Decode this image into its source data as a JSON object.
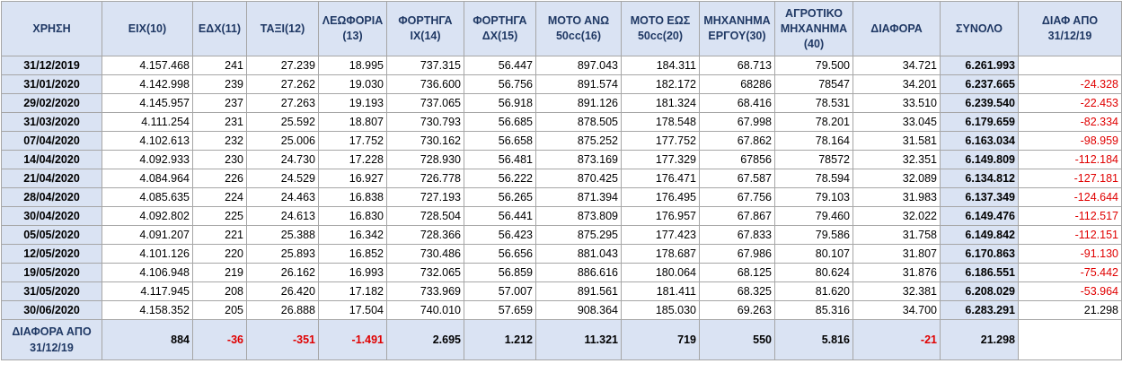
{
  "headers": [
    "ΧΡΗΣΗ",
    "ΕΙΧ(10)",
    "ΕΔΧ(11)",
    "ΤΑΞΙ(12)",
    "ΛΕΩΦΟΡΙΑ (13)",
    "ΦΟΡΤΗΓΑ ΙΧ(14)",
    "ΦΟΡΤΗΓΑ ΔΧ(15)",
    "ΜΟΤΟ ΑΝΩ 50cc(16)",
    "ΜΟΤΟ ΕΩΣ 50cc(20)",
    "ΜΗΧΑΝΗΜΑ ΕΡΓΟΥ(30)",
    "ΑΓΡΟΤΙΚΟ ΜΗΧΑΝΗΜΑ (40)",
    "ΔΙΑΦΟΡΑ",
    "ΣΥΝΟΛΟ",
    "ΔΙΑΦ ΑΠΟ 31/12/19"
  ],
  "rows": [
    [
      "31/12/2019",
      "4.157.468",
      "241",
      "27.239",
      "18.995",
      "737.315",
      "56.447",
      "897.043",
      "184.311",
      "68.713",
      "79.500",
      "34.721",
      "6.261.993",
      ""
    ],
    [
      "31/01/2020",
      "4.142.998",
      "239",
      "27.262",
      "19.030",
      "736.600",
      "56.756",
      "891.574",
      "182.172",
      "68286",
      "78547",
      "34.201",
      "6.237.665",
      "-24.328"
    ],
    [
      "29/02/2020",
      "4.145.957",
      "237",
      "27.263",
      "19.193",
      "737.065",
      "56.918",
      "891.126",
      "181.324",
      "68.416",
      "78.531",
      "33.510",
      "6.239.540",
      "-22.453"
    ],
    [
      "31/03/2020",
      "4.111.254",
      "231",
      "25.592",
      "18.807",
      "730.793",
      "56.685",
      "878.505",
      "178.548",
      "67.998",
      "78.201",
      "33.045",
      "6.179.659",
      "-82.334"
    ],
    [
      "07/04/2020",
      "4.102.613",
      "232",
      "25.006",
      "17.752",
      "730.162",
      "56.658",
      "875.252",
      "177.752",
      "67.862",
      "78.164",
      "31.581",
      "6.163.034",
      "-98.959"
    ],
    [
      "14/04/2020",
      "4.092.933",
      "230",
      "24.730",
      "17.228",
      "728.930",
      "56.481",
      "873.169",
      "177.329",
      "67856",
      "78572",
      "32.351",
      "6.149.809",
      "-112.184"
    ],
    [
      "21/04/2020",
      "4.084.964",
      "226",
      "24.529",
      "16.927",
      "726.778",
      "56.222",
      "870.425",
      "176.471",
      "67.587",
      "78.594",
      "32.089",
      "6.134.812",
      "-127.181"
    ],
    [
      "28/04/2020",
      "4.085.635",
      "224",
      "24.463",
      "16.838",
      "727.193",
      "56.265",
      "871.394",
      "176.495",
      "67.756",
      "79.103",
      "31.983",
      "6.137.349",
      "-124.644"
    ],
    [
      "30/04/2020",
      "4.092.802",
      "225",
      "24.613",
      "16.830",
      "728.504",
      "56.441",
      "873.809",
      "176.957",
      "67.867",
      "79.460",
      "32.022",
      "6.149.476",
      "-112.517"
    ],
    [
      "05/05/2020",
      "4.091.207",
      "221",
      "25.388",
      "16.342",
      "728.366",
      "56.423",
      "875.295",
      "177.423",
      "67.833",
      "79.586",
      "31.758",
      "6.149.842",
      "-112.151"
    ],
    [
      "12/05/2020",
      "4.101.126",
      "220",
      "25.893",
      "16.852",
      "730.486",
      "56.656",
      "881.043",
      "178.687",
      "67.986",
      "80.107",
      "31.807",
      "6.170.863",
      "-91.130"
    ],
    [
      "19/05/2020",
      "4.106.948",
      "219",
      "26.162",
      "16.993",
      "732.065",
      "56.859",
      "886.616",
      "180.064",
      "68.125",
      "80.624",
      "31.876",
      "6.186.551",
      "-75.442"
    ],
    [
      "31/05/2020",
      "4.117.945",
      "208",
      "26.420",
      "17.182",
      "733.969",
      "57.007",
      "891.561",
      "181.411",
      "68.325",
      "81.620",
      "32.381",
      "6.208.029",
      "-53.964"
    ],
    [
      "30/06/2020",
      "4.158.352",
      "205",
      "26.888",
      "17.504",
      "740.010",
      "57.659",
      "908.364",
      "185.030",
      "69.263",
      "85.316",
      "34.700",
      "6.283.291",
      "21.298"
    ]
  ],
  "footer": {
    "label": "ΔΙΑΦΟΡΑ ΑΠΟ 31/12/19",
    "values": [
      "884",
      "-36",
      "-351",
      "-1.491",
      "2.695",
      "1.212",
      "11.321",
      "719",
      "550",
      "5.816",
      "-21",
      "21.298"
    ]
  },
  "colors": {
    "header_bg": "#dae3f3",
    "header_text": "#1f3864",
    "negative": "#e00000",
    "border": "#a6a6a6"
  }
}
